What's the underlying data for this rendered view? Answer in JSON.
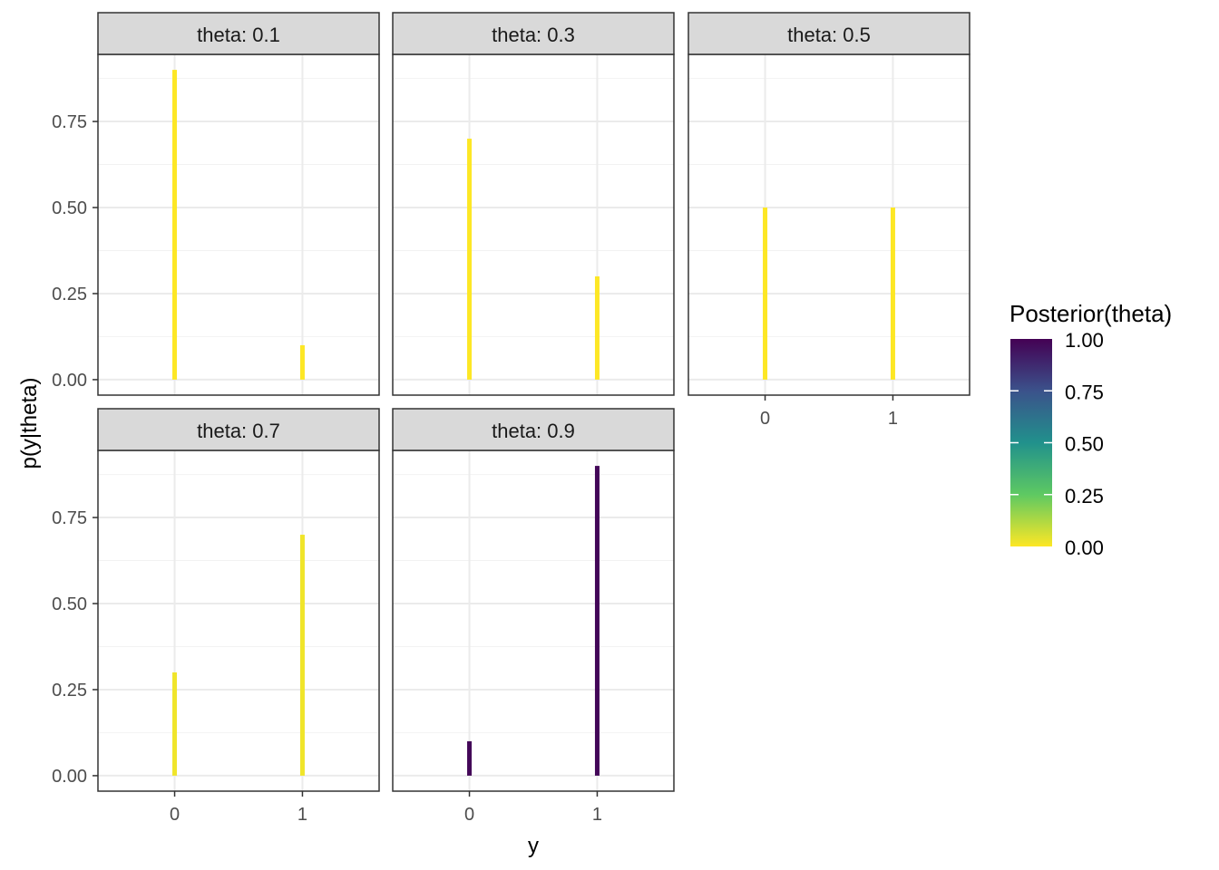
{
  "chart_data": {
    "type": "bar",
    "facet_label_prefix": "theta: ",
    "xlabel": "y",
    "ylabel": "p(y|theta)",
    "x_ticks": [
      "0",
      "1"
    ],
    "y_ticks": [
      "0.00",
      "0.25",
      "0.50",
      "0.75"
    ],
    "xlim": [
      -0.6,
      1.6
    ],
    "ylim": [
      -0.045,
      0.945
    ],
    "grid": true,
    "facets": [
      {
        "label": "theta: 0.1",
        "theta": 0.1,
        "x": [
          0,
          1
        ],
        "values": [
          0.9,
          0.1
        ],
        "posterior": 0.0
      },
      {
        "label": "theta: 0.3",
        "theta": 0.3,
        "x": [
          0,
          1
        ],
        "values": [
          0.7,
          0.3
        ],
        "posterior": 0.0
      },
      {
        "label": "theta: 0.5",
        "theta": 0.5,
        "x": [
          0,
          1
        ],
        "values": [
          0.5,
          0.5
        ],
        "posterior": 0.0
      },
      {
        "label": "theta: 0.7",
        "theta": 0.7,
        "x": [
          0,
          1
        ],
        "values": [
          0.3,
          0.7
        ],
        "posterior": 0.02
      },
      {
        "label": "theta: 0.9",
        "theta": 0.9,
        "x": [
          0,
          1
        ],
        "values": [
          0.1,
          0.9
        ],
        "posterior": 0.98
      }
    ],
    "legend": {
      "title": "Posterior(theta)",
      "placement": "right",
      "ticks": [
        "0.00",
        "0.25",
        "0.50",
        "0.75",
        "1.00"
      ],
      "range": [
        0,
        1
      ],
      "palette": "viridis",
      "colors": [
        "#fde725",
        "#5ec962",
        "#21918c",
        "#3b528b",
        "#440154"
      ]
    }
  }
}
